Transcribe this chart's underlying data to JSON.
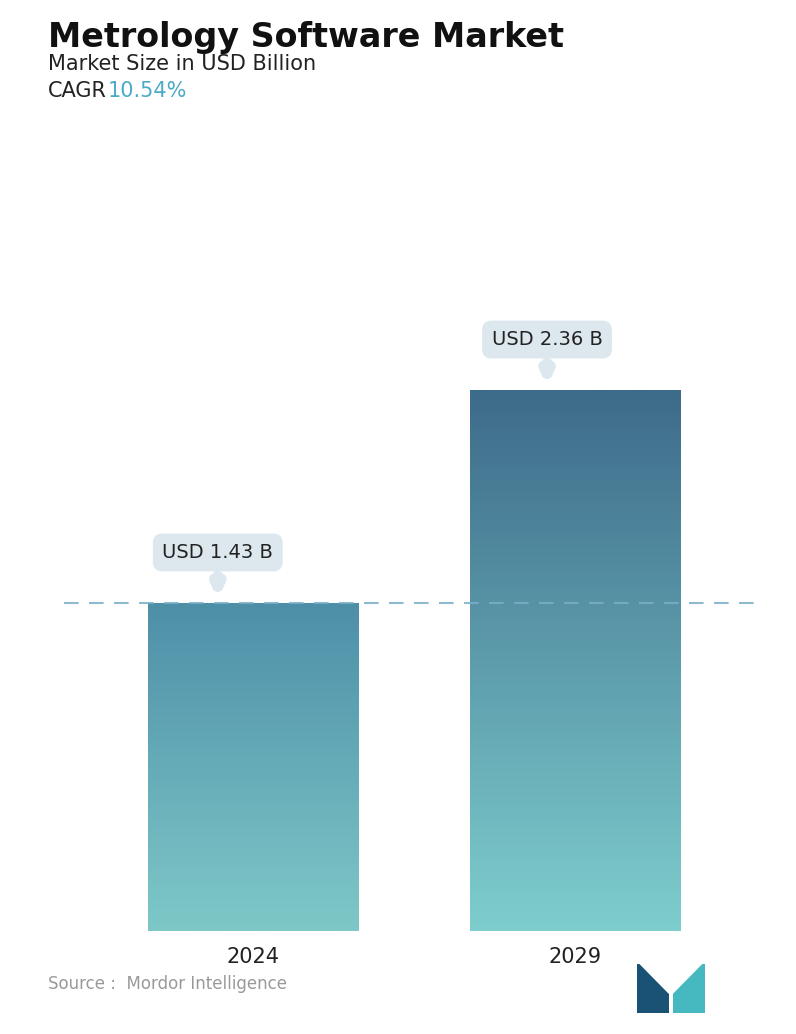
{
  "title": "Metrology Software Market",
  "subtitle": "Market Size in USD Billion",
  "cagr_label": "CAGR",
  "cagr_value": "10.54%",
  "cagr_color": "#4BAAC8",
  "categories": [
    "2024",
    "2029"
  ],
  "values": [
    1.43,
    2.36
  ],
  "bar_labels": [
    "USD 1.43 B",
    "USD 2.36 B"
  ],
  "bar1_top_color": "#4E8FA8",
  "bar1_bottom_color": "#7EC8C8",
  "bar2_top_color": "#3D6B8A",
  "bar2_bottom_color": "#7ECECE",
  "dashed_line_color": "#7AAEC8",
  "dashed_line_value": 1.43,
  "ylim": [
    0,
    2.8
  ],
  "source_text": "Source :  Mordor Intelligence",
  "source_color": "#999999",
  "background_color": "#FFFFFF",
  "title_fontsize": 24,
  "subtitle_fontsize": 15,
  "cagr_fontsize": 15,
  "bar_label_fontsize": 14,
  "tick_fontsize": 15,
  "source_fontsize": 12,
  "callout_bg": "#DDE8EE",
  "callout_text_color": "#222222"
}
